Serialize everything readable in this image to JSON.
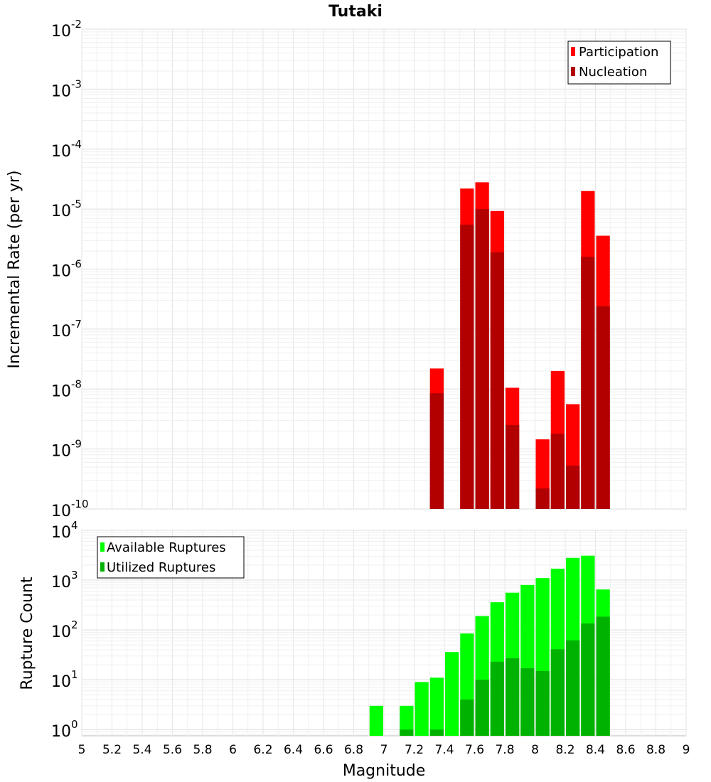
{
  "chart_data": [
    {
      "type": "bar",
      "title": "Tutaki",
      "ylabel": "Incremental Rate (per yr)",
      "xlabel": "",
      "yscale": "log",
      "ylim": [
        1e-10,
        0.01
      ],
      "xlim": [
        5,
        9
      ],
      "ytick_exponents": [
        "-2",
        "-3",
        "-4",
        "-5",
        "-6",
        "-7",
        "-8",
        "-9",
        "-10"
      ],
      "legend": "top-right",
      "grid": true,
      "bar_width": 0.1,
      "overlay": true,
      "series": [
        {
          "name": "Participation",
          "color": "#ff0000",
          "x": [
            7.35,
            7.55,
            7.65,
            7.75,
            7.85,
            8.05,
            8.15,
            8.25,
            8.35,
            8.45
          ],
          "values": [
            2.2e-08,
            2.2e-05,
            2.8e-05,
            9.3e-06,
            1.05e-08,
            1.45e-09,
            2e-08,
            5.6e-09,
            2e-05,
            3.6e-06
          ]
        },
        {
          "name": "Nucleation",
          "color": "#b20000",
          "x": [
            7.35,
            7.55,
            7.65,
            7.75,
            7.85,
            8.05,
            8.15,
            8.25,
            8.35,
            8.45
          ],
          "values": [
            8.5e-09,
            5.5e-06,
            1e-05,
            1.9e-06,
            2.5e-09,
            2.2e-10,
            1.8e-09,
            5.3e-10,
            1.6e-06,
            2.4e-07
          ]
        }
      ]
    },
    {
      "type": "bar",
      "title": "",
      "ylabel": "Rupture Count",
      "xlabel": "Magnitude",
      "yscale": "log",
      "ylim": [
        0.75,
        10000
      ],
      "xlim": [
        5,
        9
      ],
      "ytick_exponents": [
        "4",
        "3",
        "2",
        "1",
        "0"
      ],
      "x_ticks": [
        "5",
        "5.2",
        "5.4",
        "5.6",
        "5.8",
        "6",
        "6.2",
        "6.4",
        "6.6",
        "6.8",
        "7",
        "7.2",
        "7.4",
        "7.6",
        "7.8",
        "8",
        "8.2",
        "8.4",
        "8.6",
        "8.8",
        "9"
      ],
      "legend": "top-left",
      "grid": true,
      "bar_width": 0.1,
      "overlay": true,
      "series": [
        {
          "name": "Available Ruptures",
          "color": "#00ff00",
          "x": [
            6.95,
            7.15,
            7.25,
            7.35,
            7.45,
            7.55,
            7.65,
            7.75,
            7.85,
            7.95,
            8.05,
            8.15,
            8.25,
            8.35,
            8.45
          ],
          "values": [
            3,
            3,
            9,
            11,
            36,
            85,
            190,
            360,
            560,
            800,
            1100,
            1700,
            2800,
            3100,
            650
          ]
        },
        {
          "name": "Utilized Ruptures",
          "color": "#00b200",
          "x": [
            7.15,
            7.35,
            7.55,
            7.65,
            7.75,
            7.85,
            7.95,
            8.05,
            8.15,
            8.25,
            8.35,
            8.45
          ],
          "values": [
            1,
            1,
            4,
            10,
            23,
            27,
            17,
            15,
            41,
            62,
            135,
            185
          ]
        }
      ]
    }
  ]
}
